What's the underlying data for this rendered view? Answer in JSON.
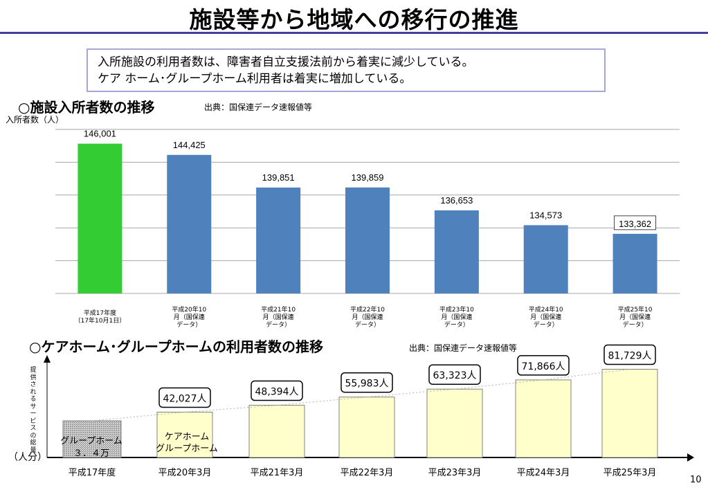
{
  "page": {
    "title": "施設等から地域への移行の推進",
    "summary_line1": "入所施設の利用者数は、障害者自立支援法前から着実に減少している。",
    "summary_line2": "ケア ホーム･グループホーム利用者は着実に増加している。",
    "page_number": "10"
  },
  "colors": {
    "title_rule": "#4040a0",
    "highlight_bar": "#33cc33",
    "bar_blue": "#4f81bd",
    "bar_yellow": "#ffffcc",
    "summary_border": "#a6a6d8"
  },
  "chart_data": [
    {
      "type": "bar",
      "title": "○施設入所者数の推移",
      "source": "出典：国保連データ速報値等",
      "ylabel": "入所者数（人）",
      "ylim": [
        125000,
        148000
      ],
      "grid": true,
      "categories": [
        [
          "平成17年度",
          "（17年10月1日）"
        ],
        [
          "平成20年10",
          "月（国保連",
          "データ）"
        ],
        [
          "平成21年10",
          "月（国保連",
          "データ）"
        ],
        [
          "平成22年10",
          "月（国保連",
          "データ）"
        ],
        [
          "平成23年10",
          "月（国保連",
          "データ）"
        ],
        [
          "平成24年10",
          "月（国保連",
          "データ）"
        ],
        [
          "平成25年10",
          "月（国保連",
          "データ）"
        ]
      ],
      "values": [
        146001,
        144425,
        139851,
        139859,
        136653,
        134573,
        133362
      ],
      "value_labels": [
        "146,001",
        "144,425",
        "139,851",
        "139,859",
        "136,653",
        "134,573",
        "133,362"
      ],
      "bar_colors": [
        "#33cc33",
        "#4f81bd",
        "#4f81bd",
        "#4f81bd",
        "#4f81bd",
        "#4f81bd",
        "#4f81bd"
      ],
      "boxed_label_index": 6
    },
    {
      "type": "bar",
      "title": "○ケアホーム･グループホームの利用者数の推移",
      "source": "出典：国保連データ速報値等",
      "ylabel": "提供されるサービスの総量",
      "unit": "（人分）",
      "categories": [
        "平成17年度",
        "平成20年3月",
        "平成21年3月",
        "平成22年3月",
        "平成23年3月",
        "平成24年3月",
        "平成25年3月"
      ],
      "values": [
        34000,
        42027,
        48394,
        55983,
        63323,
        71866,
        81729
      ],
      "value_labels": [
        "",
        "42,027人",
        "48,394人",
        "55,983人",
        "63,323人",
        "71,866人",
        "81,729人"
      ],
      "first_bar_label": [
        "グループホーム",
        "３．４万"
      ],
      "legend_label": [
        "ケアホーム",
        "グループホーム"
      ],
      "trend_line": "dotted"
    }
  ]
}
